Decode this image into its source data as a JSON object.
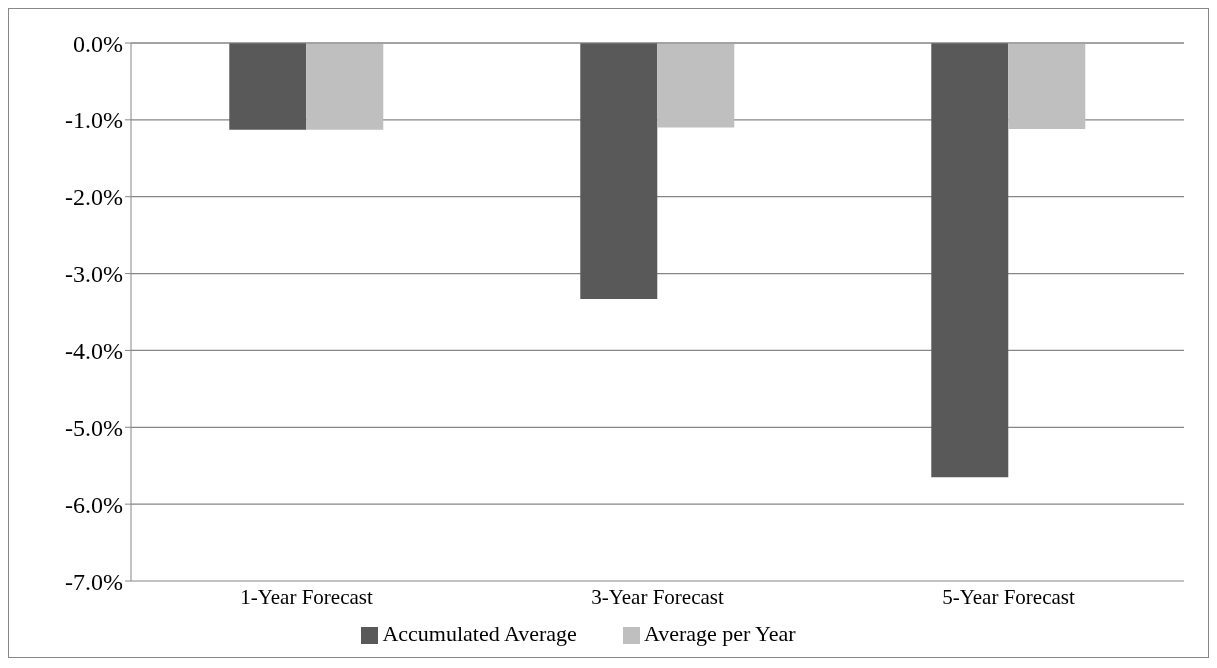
{
  "chart_data": {
    "type": "bar",
    "categories": [
      "1-Year Forecast",
      "3-Year Forecast",
      "5-Year Forecast"
    ],
    "series": [
      {
        "name": "Accumulated Average",
        "color": "#595959",
        "values": [
          -1.13,
          -3.33,
          -5.65
        ]
      },
      {
        "name": "Average per Year",
        "color": "#bfbfbf",
        "values": [
          -1.13,
          -1.1,
          -1.12
        ]
      }
    ],
    "ylim": [
      -7,
      0
    ],
    "yticks": [
      {
        "value": 0,
        "label": "0.0%"
      },
      {
        "value": -1,
        "label": "-1.0%"
      },
      {
        "value": -2,
        "label": "-2.0%"
      },
      {
        "value": -3,
        "label": "-3.0%"
      },
      {
        "value": -4,
        "label": "-4.0%"
      },
      {
        "value": -5,
        "label": "-5.0%"
      },
      {
        "value": -6,
        "label": "-6.0%"
      },
      {
        "value": -7,
        "label": "-7.0%"
      }
    ],
    "grid": "y",
    "legend": "bottom"
  }
}
